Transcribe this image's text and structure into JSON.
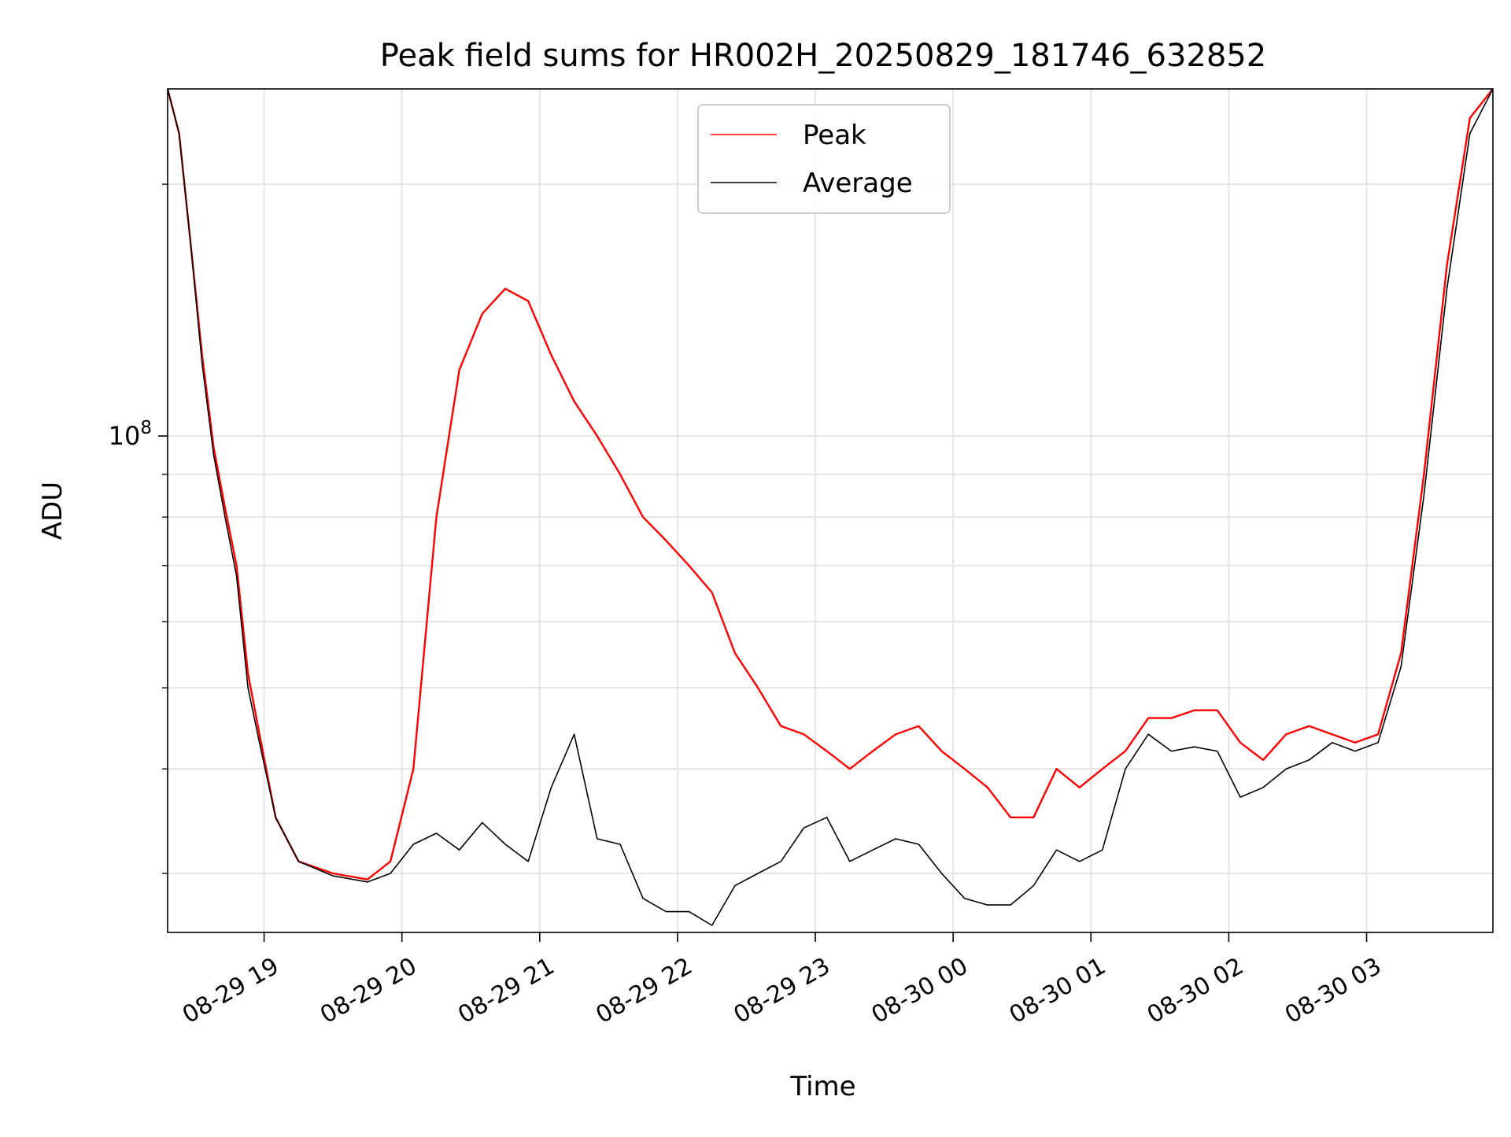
{
  "chart_data": {
    "type": "line",
    "title": "Peak field sums for HR002H_20250829_181746_632852",
    "xlabel": "Time",
    "ylabel": "ADU",
    "yscale": "log",
    "xlim": [
      "2025-08-29 18:18",
      "2025-08-30 03:55"
    ],
    "ylim": [
      25500000,
      260000000
    ],
    "grid": true,
    "legend_position": "top-center",
    "x_ticks": [
      {
        "label": "08-29 19",
        "value": "2025-08-29 19:00"
      },
      {
        "label": "08-29 20",
        "value": "2025-08-29 20:00"
      },
      {
        "label": "08-29 21",
        "value": "2025-08-29 21:00"
      },
      {
        "label": "08-29 22",
        "value": "2025-08-29 22:00"
      },
      {
        "label": "08-29 23",
        "value": "2025-08-29 23:00"
      },
      {
        "label": "08-30 00",
        "value": "2025-08-30 00:00"
      },
      {
        "label": "08-30 01",
        "value": "2025-08-30 01:00"
      },
      {
        "label": "08-30 02",
        "value": "2025-08-30 02:00"
      },
      {
        "label": "08-30 03",
        "value": "2025-08-30 03:00"
      }
    ],
    "y_major_ticks": [
      {
        "label_base": "10",
        "label_exp": "8",
        "value": 100000000
      }
    ],
    "y_minor_ticks": [
      30000000,
      40000000,
      50000000,
      60000000,
      70000000,
      80000000,
      90000000,
      200000000
    ],
    "series": [
      {
        "name": "Peak",
        "color": "#ff0000",
        "x": [
          "2025-08-29 18:18",
          "2025-08-29 18:23",
          "2025-08-29 18:28",
          "2025-08-29 18:33",
          "2025-08-29 18:38",
          "2025-08-29 18:43",
          "2025-08-29 18:48",
          "2025-08-29 18:53",
          "2025-08-29 18:58",
          "2025-08-29 19:05",
          "2025-08-29 19:15",
          "2025-08-29 19:30",
          "2025-08-29 19:45",
          "2025-08-29 19:55",
          "2025-08-29 20:05",
          "2025-08-29 20:15",
          "2025-08-29 20:25",
          "2025-08-29 20:35",
          "2025-08-29 20:45",
          "2025-08-29 20:55",
          "2025-08-29 21:05",
          "2025-08-29 21:15",
          "2025-08-29 21:25",
          "2025-08-29 21:35",
          "2025-08-29 21:45",
          "2025-08-29 21:55",
          "2025-08-29 22:05",
          "2025-08-29 22:15",
          "2025-08-29 22:25",
          "2025-08-29 22:35",
          "2025-08-29 22:45",
          "2025-08-29 22:55",
          "2025-08-29 23:05",
          "2025-08-29 23:15",
          "2025-08-29 23:25",
          "2025-08-29 23:35",
          "2025-08-29 23:45",
          "2025-08-29 23:55",
          "2025-08-30 00:05",
          "2025-08-30 00:15",
          "2025-08-30 00:25",
          "2025-08-30 00:35",
          "2025-08-30 00:45",
          "2025-08-30 00:55",
          "2025-08-30 01:05",
          "2025-08-30 01:15",
          "2025-08-30 01:25",
          "2025-08-30 01:35",
          "2025-08-30 01:45",
          "2025-08-30 01:55",
          "2025-08-30 02:05",
          "2025-08-30 02:15",
          "2025-08-30 02:25",
          "2025-08-30 02:35",
          "2025-08-30 02:45",
          "2025-08-30 02:55",
          "2025-08-30 03:05",
          "2025-08-30 03:15",
          "2025-08-30 03:25",
          "2025-08-30 03:35",
          "2025-08-30 03:45",
          "2025-08-30 03:55"
        ],
        "y": [
          260000000,
          230000000,
          170000000,
          125000000,
          97000000,
          82000000,
          70000000,
          52000000,
          44000000,
          35000000,
          31000000,
          30000000,
          29500000,
          31000000,
          40000000,
          80000000,
          120000000,
          140000000,
          150000000,
          145000000,
          125000000,
          110000000,
          100000000,
          90000000,
          80000000,
          75000000,
          70000000,
          65000000,
          55000000,
          50000000,
          45000000,
          44000000,
          42000000,
          40000000,
          42000000,
          44000000,
          45000000,
          42000000,
          40000000,
          38000000,
          35000000,
          35000000,
          40000000,
          38000000,
          40000000,
          42000000,
          46000000,
          46000000,
          47000000,
          47000000,
          43000000,
          41000000,
          44000000,
          45000000,
          44000000,
          43000000,
          44000000,
          55000000,
          90000000,
          160000000,
          240000000,
          260000000
        ]
      },
      {
        "name": "Average",
        "color": "#000000",
        "x": [
          "2025-08-29 18:18",
          "2025-08-29 18:23",
          "2025-08-29 18:28",
          "2025-08-29 18:33",
          "2025-08-29 18:38",
          "2025-08-29 18:43",
          "2025-08-29 18:48",
          "2025-08-29 18:53",
          "2025-08-29 18:58",
          "2025-08-29 19:05",
          "2025-08-29 19:15",
          "2025-08-29 19:30",
          "2025-08-29 19:45",
          "2025-08-29 19:55",
          "2025-08-29 20:05",
          "2025-08-29 20:15",
          "2025-08-29 20:25",
          "2025-08-29 20:35",
          "2025-08-29 20:45",
          "2025-08-29 20:55",
          "2025-08-29 21:05",
          "2025-08-29 21:15",
          "2025-08-29 21:25",
          "2025-08-29 21:35",
          "2025-08-29 21:45",
          "2025-08-29 21:55",
          "2025-08-29 22:05",
          "2025-08-29 22:15",
          "2025-08-29 22:25",
          "2025-08-29 22:35",
          "2025-08-29 22:45",
          "2025-08-29 22:55",
          "2025-08-29 23:05",
          "2025-08-29 23:15",
          "2025-08-29 23:25",
          "2025-08-29 23:35",
          "2025-08-29 23:45",
          "2025-08-29 23:55",
          "2025-08-30 00:05",
          "2025-08-30 00:15",
          "2025-08-30 00:25",
          "2025-08-30 00:35",
          "2025-08-30 00:45",
          "2025-08-30 00:55",
          "2025-08-30 01:05",
          "2025-08-30 01:15",
          "2025-08-30 01:25",
          "2025-08-30 01:35",
          "2025-08-30 01:45",
          "2025-08-30 01:55",
          "2025-08-30 02:05",
          "2025-08-30 02:15",
          "2025-08-30 02:25",
          "2025-08-30 02:35",
          "2025-08-30 02:45",
          "2025-08-30 02:55",
          "2025-08-30 03:05",
          "2025-08-30 03:15",
          "2025-08-30 03:25",
          "2025-08-30 03:35",
          "2025-08-30 03:45",
          "2025-08-30 03:55"
        ],
        "y": [
          260000000,
          230000000,
          170000000,
          122000000,
          95000000,
          80000000,
          68000000,
          50000000,
          43000000,
          35000000,
          31000000,
          29800000,
          29300000,
          30000000,
          32500000,
          33500000,
          32000000,
          34500000,
          32500000,
          31000000,
          38000000,
          44000000,
          33000000,
          32500000,
          28000000,
          27000000,
          27000000,
          26000000,
          29000000,
          30000000,
          31000000,
          34000000,
          35000000,
          31000000,
          32000000,
          33000000,
          32500000,
          30000000,
          28000000,
          27500000,
          27500000,
          29000000,
          32000000,
          31000000,
          32000000,
          40000000,
          44000000,
          42000000,
          42500000,
          42000000,
          37000000,
          38000000,
          40000000,
          41000000,
          43000000,
          42000000,
          43000000,
          53000000,
          85000000,
          150000000,
          230000000,
          260000000
        ]
      }
    ]
  }
}
